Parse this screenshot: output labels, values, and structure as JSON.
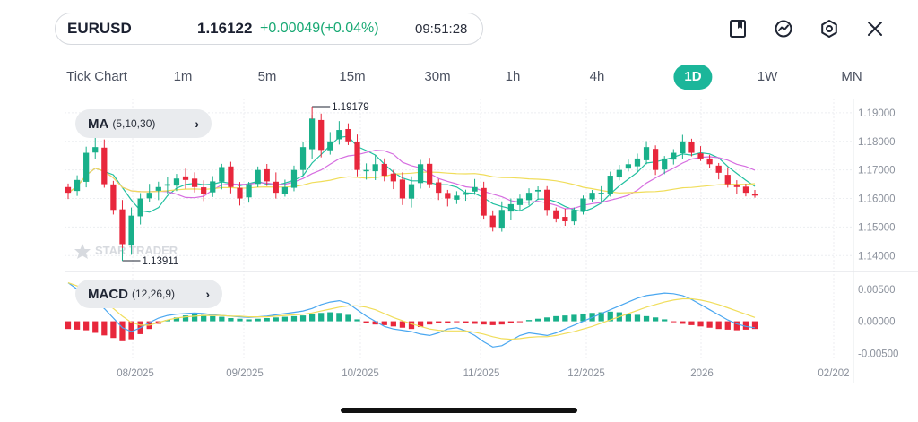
{
  "header": {
    "symbol": "EURUSD",
    "price": "1.16122",
    "change": "+0.00049(+0.04%)",
    "time": "09:51:28"
  },
  "icons": {
    "bookmark": "bookmark-icon",
    "indicator": "chart-trend-icon",
    "settings": "hexagon-settings-icon",
    "close": "close-icon"
  },
  "timeframes": [
    "Tick Chart",
    "1m",
    "5m",
    "15m",
    "30m",
    "1h",
    "4h",
    "1D",
    "1W",
    "MN"
  ],
  "active_timeframe": "1D",
  "colors": {
    "accent": "#1bb69a",
    "bullish": "#19b08a",
    "bearish": "#e8273c",
    "ma_fast": "#22c0a0",
    "ma_mid": "#d66ee0",
    "ma_slow": "#f0dd5a",
    "macd_line": "#4aa7f0",
    "signal_line": "#f0dd5a"
  },
  "indicators": {
    "ma": {
      "label": "MA",
      "params": "(5,10,30)"
    },
    "macd": {
      "label": "MACD",
      "params": "(12,26,9)"
    }
  },
  "watermark": "STAR TRADER",
  "chart_data": [
    {
      "type": "candlestick",
      "annotations": {
        "high_label": "1.19179",
        "low_label": "1.13911"
      },
      "y_ticks": [
        "1.19000",
        "1.18000",
        "1.17000",
        "1.16000",
        "1.15000",
        "1.14000"
      ],
      "ylim": [
        1.136,
        1.195
      ],
      "x_ticks": [
        "08/2025",
        "09/2025",
        "10/2025",
        "11/2025",
        "12/2025",
        "2026",
        "02/202"
      ],
      "series": [
        {
          "name": "MA",
          "params": "(5,10,30)"
        }
      ],
      "close_path": [
        1.162,
        1.1665,
        1.176,
        1.178,
        1.165,
        1.156,
        1.144,
        1.154,
        1.16,
        1.162,
        1.164,
        1.165,
        1.167,
        1.1665,
        1.164,
        1.1615,
        1.166,
        1.171,
        1.164,
        1.16,
        1.165,
        1.17,
        1.166,
        1.162,
        1.164,
        1.17,
        1.178,
        1.188,
        1.177,
        1.18,
        1.184,
        1.18,
        1.17,
        1.17,
        1.172,
        1.168,
        1.166,
        1.16,
        1.165,
        1.172,
        1.165,
        1.162,
        1.16,
        1.161,
        1.162,
        1.164,
        1.154,
        1.15,
        1.156,
        1.158,
        1.16,
        1.162,
        1.163,
        1.156,
        1.153,
        1.152,
        1.156,
        1.16,
        1.162,
        1.162,
        1.168,
        1.17,
        1.172,
        1.174,
        1.178,
        1.17,
        1.174,
        1.176,
        1.18,
        1.176,
        1.174,
        1.172,
        1.169,
        1.165,
        1.164,
        1.162,
        1.1612
      ]
    },
    {
      "type": "macd",
      "params": "(12,26,9)",
      "y_ticks": [
        "0.00500",
        "0.00000",
        "-0.00500"
      ],
      "ylim": [
        -0.0055,
        0.0065
      ],
      "hist": [
        -0.0012,
        -0.0013,
        -0.0014,
        -0.0018,
        -0.0022,
        -0.0026,
        -0.0031,
        -0.0028,
        -0.002,
        -0.0012,
        -0.0004,
        0.0002,
        0.0006,
        0.0009,
        0.0011,
        0.001,
        0.0008,
        0.0007,
        0.0005,
        0.0004,
        0.0003,
        0.0004,
        0.0005,
        0.0006,
        0.0007,
        0.0008,
        0.0009,
        0.0011,
        0.0013,
        0.0014,
        0.0013,
        0.001,
        0.0003,
        -0.0003,
        -0.0005,
        -0.0006,
        -0.0008,
        -0.001,
        -0.0012,
        -0.0009,
        -0.0005,
        -0.0003,
        -0.0002,
        -0.0001,
        -0.0003,
        -0.0004,
        -0.0005,
        -0.0006,
        -0.0005,
        -0.0003,
        -0.0001,
        0.0002,
        0.0004,
        0.0006,
        0.0008,
        0.0009,
        0.001,
        0.0012,
        0.0013,
        0.0014,
        0.0015,
        0.0014,
        0.0012,
        0.001,
        0.0008,
        0.0006,
        0.0003,
        -0.0001,
        -0.0004,
        -0.0006,
        -0.0008,
        -0.001,
        -0.0012,
        -0.0013,
        -0.0014,
        -0.0013,
        -0.0012
      ],
      "macd_line": [
        0.006,
        0.005,
        0.004,
        0.003,
        0.002,
        0.0005,
        -0.001,
        -0.0016,
        -0.001,
        -0.0002,
        0.0005,
        0.0009,
        0.0011,
        0.0012,
        0.0013,
        0.0012,
        0.001,
        0.0009,
        0.0008,
        0.0007,
        0.0006,
        0.0007,
        0.0008,
        0.001,
        0.0012,
        0.0014,
        0.0016,
        0.002,
        0.0026,
        0.003,
        0.0032,
        0.0028,
        0.0018,
        0.0008,
        0.0,
        -0.0008,
        -0.0012,
        -0.0014,
        -0.0016,
        -0.002,
        -0.0022,
        -0.0018,
        -0.0012,
        -0.001,
        -0.0015,
        -0.0022,
        -0.0032,
        -0.004,
        -0.0038,
        -0.003,
        -0.0022,
        -0.0018,
        -0.002,
        -0.0022,
        -0.0018,
        -0.0012,
        -0.0006,
        0.0,
        0.0006,
        0.0012,
        0.0018,
        0.0024,
        0.003,
        0.0036,
        0.004,
        0.0042,
        0.0044,
        0.0043,
        0.004,
        0.0034,
        0.0026,
        0.0018,
        0.001,
        0.0002,
        -0.0004,
        -0.0008,
        -0.001
      ],
      "signal_line": [
        0.006,
        0.0055,
        0.0048,
        0.004,
        0.003,
        0.002,
        0.0008,
        -0.0002,
        -0.0006,
        -0.0006,
        -0.0002,
        0.0002,
        0.0005,
        0.0007,
        0.0008,
        0.0009,
        0.0009,
        0.0009,
        0.0008,
        0.0008,
        0.0007,
        0.0007,
        0.0007,
        0.0008,
        0.0009,
        0.001,
        0.0011,
        0.0013,
        0.0016,
        0.0019,
        0.0022,
        0.0024,
        0.0024,
        0.0022,
        0.0018,
        0.0012,
        0.0006,
        0.0001,
        -0.0004,
        -0.0008,
        -0.0012,
        -0.0014,
        -0.0015,
        -0.0015,
        -0.0015,
        -0.0017,
        -0.002,
        -0.0024,
        -0.0027,
        -0.0028,
        -0.0027,
        -0.0025,
        -0.0024,
        -0.0024,
        -0.0022,
        -0.0019,
        -0.0016,
        -0.0012,
        -0.0008,
        -0.0003,
        0.0002,
        0.0007,
        0.0012,
        0.0017,
        0.0022,
        0.0026,
        0.003,
        0.0033,
        0.0035,
        0.0035,
        0.0033,
        0.003,
        0.0026,
        0.0021,
        0.0016,
        0.0011,
        0.0006
      ]
    }
  ]
}
